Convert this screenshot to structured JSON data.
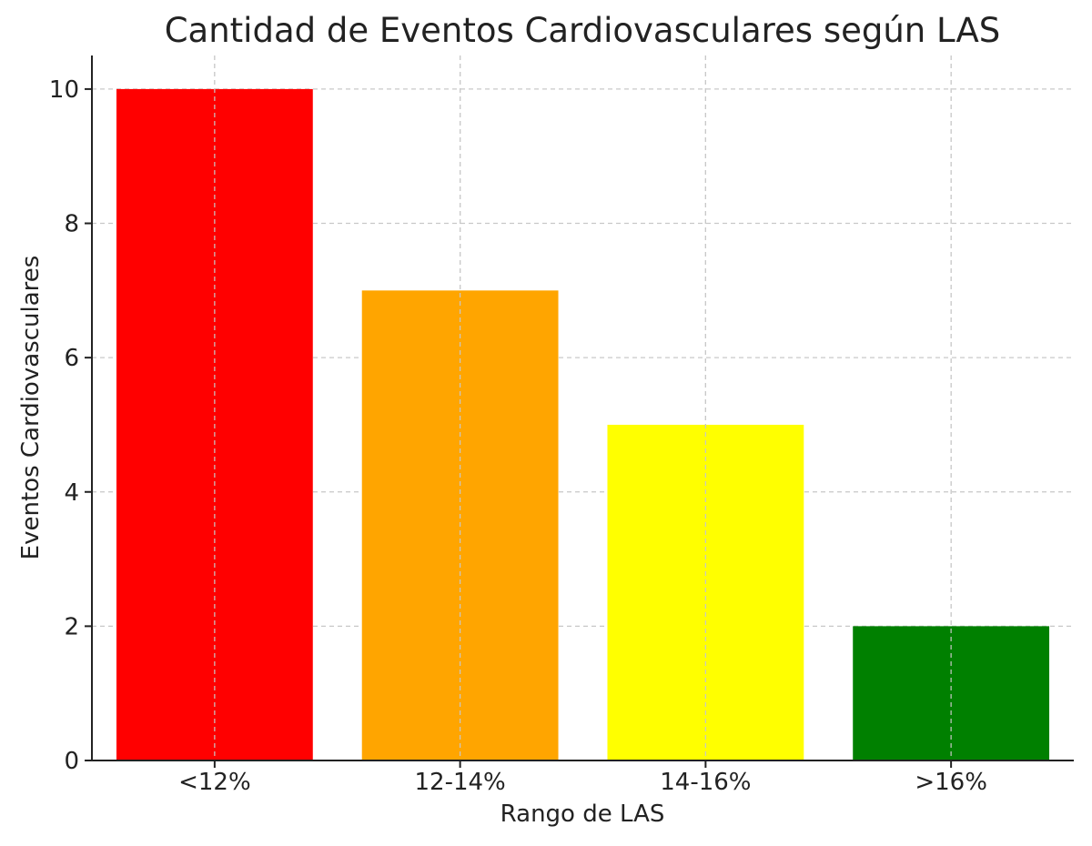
{
  "chart_data": {
    "type": "bar",
    "title": "Cantidad de Eventos Cardiovasculares según LAS",
    "xlabel": "Rango de LAS",
    "ylabel": "Eventos Cardiovasculares",
    "categories": [
      "<12%",
      "12-14%",
      "14-16%",
      ">16%"
    ],
    "values": [
      10,
      7,
      5,
      2
    ],
    "colors": [
      "#ff0000",
      "#ffa500",
      "#ffff00",
      "#008000"
    ],
    "ylim": [
      0,
      10.5
    ],
    "yticks": [
      0,
      2,
      4,
      6,
      8,
      10
    ],
    "grid": true,
    "legend": "none"
  }
}
